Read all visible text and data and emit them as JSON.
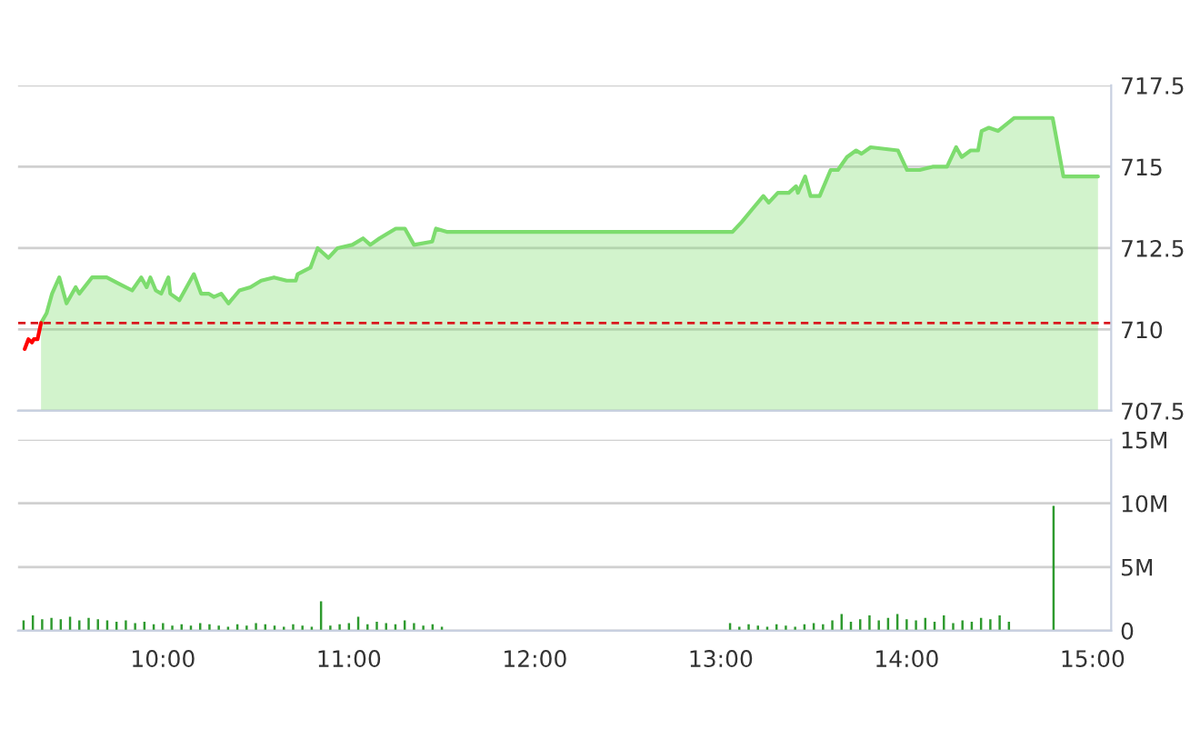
{
  "chart_data": [
    {
      "type": "area",
      "xlim": [
        9.22,
        15.1
      ],
      "ylim": [
        707.5,
        717.5
      ],
      "yticks": [
        707.5,
        710,
        712.5,
        715,
        717.5
      ],
      "grid": "y",
      "tick_labels": "y",
      "ref_lines": [
        {
          "axis": "y",
          "value": 710.2,
          "color": "#d9181e",
          "line_style": "dashed"
        }
      ],
      "series": [
        {
          "type": "area",
          "color": "#7ddc6e",
          "x": [
            9.344,
            9.374,
            9.403,
            9.442,
            9.481,
            9.53,
            9.55,
            9.618,
            9.697,
            9.765,
            9.834,
            9.883,
            9.912,
            9.932,
            9.961,
            9.99,
            10.029,
            10.039,
            10.088,
            10.166,
            10.205,
            10.245,
            10.274,
            10.313,
            10.352,
            10.411,
            10.47,
            10.528,
            10.597,
            10.665,
            10.714,
            10.724,
            10.793,
            10.832,
            10.89,
            10.939,
            11.018,
            11.076,
            11.115,
            11.164,
            11.252,
            11.301,
            11.35,
            11.448,
            11.468,
            11.526,
            13.063,
            13.112,
            13.17,
            13.229,
            13.258,
            13.307,
            13.366,
            13.405,
            13.415,
            13.454,
            13.483,
            13.532,
            13.591,
            13.63,
            13.679,
            13.728,
            13.757,
            13.806,
            13.953,
            14.002,
            14.07,
            14.139,
            14.217,
            14.266,
            14.296,
            14.344,
            14.384,
            14.403,
            14.442,
            14.491,
            14.579,
            14.785,
            14.843,
            15.029
          ],
          "values": [
            710.2,
            710.5,
            711.1,
            711.6,
            710.8,
            711.3,
            711.1,
            711.6,
            711.6,
            711.4,
            711.2,
            711.6,
            711.3,
            711.6,
            711.2,
            711.1,
            711.6,
            711.1,
            710.9,
            711.7,
            711.1,
            711.1,
            711.0,
            711.1,
            710.8,
            711.2,
            711.3,
            711.5,
            711.6,
            711.5,
            711.5,
            711.7,
            711.9,
            712.5,
            712.2,
            712.5,
            712.6,
            712.8,
            712.6,
            712.8,
            713.1,
            713.1,
            712.6,
            712.7,
            713.1,
            713.0,
            713.0,
            713.3,
            713.7,
            714.1,
            713.9,
            714.2,
            714.2,
            714.4,
            714.2,
            714.7,
            714.1,
            714.1,
            714.9,
            714.9,
            715.3,
            715.5,
            715.4,
            715.6,
            715.5,
            714.9,
            714.9,
            715.0,
            715.0,
            715.6,
            715.3,
            715.5,
            715.5,
            716.1,
            716.2,
            716.1,
            716.5,
            716.5,
            714.7,
            714.7
          ]
        },
        {
          "type": "line",
          "color": "#ff0000",
          "x": [
            9.256,
            9.276,
            9.295,
            9.305,
            9.325,
            9.344
          ],
          "values": [
            709.4,
            709.7,
            709.6,
            709.7,
            709.7,
            710.2
          ]
        }
      ]
    },
    {
      "type": "bar",
      "xlim": [
        9.22,
        15.1
      ],
      "ylim": [
        0,
        15
      ],
      "grid": "y",
      "yticks": [
        {
          "value": 0,
          "label": "0"
        },
        {
          "value": 5,
          "label": "5M"
        },
        {
          "value": 10,
          "label": "10M"
        },
        {
          "value": 15,
          "label": "15M"
        }
      ],
      "xticks": [
        {
          "value": 10,
          "label": "10:00"
        },
        {
          "value": 11,
          "label": "11:00"
        },
        {
          "value": 12,
          "label": "12:00"
        },
        {
          "value": 13,
          "label": "13:00"
        },
        {
          "value": 14,
          "label": "14:00"
        },
        {
          "value": 15,
          "label": "15:00"
        }
      ],
      "color": "#2e9a2e",
      "x": [
        9.25,
        9.3,
        9.35,
        9.4,
        9.45,
        9.5,
        9.55,
        9.6,
        9.65,
        9.7,
        9.75,
        9.8,
        9.85,
        9.9,
        9.95,
        10.0,
        10.05,
        10.1,
        10.15,
        10.2,
        10.25,
        10.3,
        10.35,
        10.4,
        10.45,
        10.5,
        10.55,
        10.6,
        10.65,
        10.7,
        10.75,
        10.8,
        10.85,
        10.9,
        10.95,
        11.0,
        11.05,
        11.1,
        11.15,
        11.2,
        11.25,
        11.3,
        11.35,
        11.4,
        11.45,
        11.5,
        13.05,
        13.1,
        13.15,
        13.2,
        13.25,
        13.3,
        13.35,
        13.4,
        13.45,
        13.5,
        13.55,
        13.6,
        13.65,
        13.7,
        13.75,
        13.8,
        13.85,
        13.9,
        13.95,
        14.0,
        14.05,
        14.1,
        14.15,
        14.2,
        14.25,
        14.3,
        14.35,
        14.4,
        14.45,
        14.5,
        14.55,
        14.79
      ],
      "values": [
        0.8,
        1.2,
        0.9,
        1.0,
        0.9,
        1.1,
        0.8,
        1.0,
        0.9,
        0.8,
        0.7,
        0.8,
        0.6,
        0.7,
        0.5,
        0.6,
        0.4,
        0.5,
        0.4,
        0.6,
        0.5,
        0.4,
        0.3,
        0.5,
        0.4,
        0.6,
        0.5,
        0.4,
        0.3,
        0.5,
        0.4,
        0.3,
        2.3,
        0.4,
        0.5,
        0.6,
        1.1,
        0.5,
        0.7,
        0.6,
        0.5,
        0.8,
        0.6,
        0.4,
        0.5,
        0.3,
        0.6,
        0.3,
        0.5,
        0.4,
        0.3,
        0.5,
        0.4,
        0.3,
        0.5,
        0.6,
        0.5,
        0.8,
        1.3,
        0.7,
        0.9,
        1.2,
        0.8,
        1.0,
        1.3,
        0.9,
        0.8,
        1.0,
        0.7,
        1.2,
        0.6,
        0.8,
        0.7,
        1.0,
        0.9,
        1.2,
        0.7,
        9.8
      ]
    }
  ]
}
